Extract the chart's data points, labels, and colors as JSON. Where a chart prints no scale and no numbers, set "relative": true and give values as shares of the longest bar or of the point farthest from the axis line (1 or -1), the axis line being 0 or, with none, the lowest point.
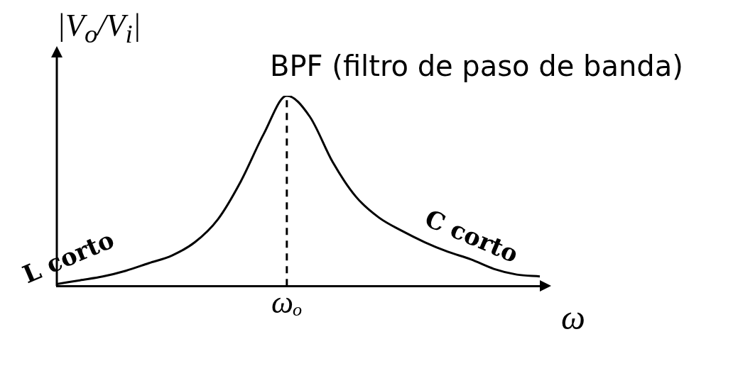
{
  "chart_data": {
    "type": "line",
    "title": "BPF (filtro de paso de banda)",
    "xlabel": "ω",
    "ylabel": "|V$_{o}$/V$_{i}$|",
    "relative": true,
    "grid": false,
    "legend": false,
    "marker": "none",
    "line_style": "solid",
    "categories": [
      null,
      null,
      null,
      null,
      null,
      null,
      null,
      null,
      null,
      null,
      null,
      null,
      null,
      null,
      null,
      null,
      null,
      null,
      null,
      null,
      null,
      null
    ],
    "series": [
      {
        "color": "#000000",
        "values": [
          0.01,
          0.03,
          0.05,
          0.08,
          0.12,
          0.16,
          0.23,
          0.35,
          0.55,
          0.8,
          1,
          0.89,
          0.65,
          0.47,
          0.36,
          0.29,
          0.23,
          0.18,
          0.14,
          0.09,
          0.06,
          0.05
        ]
      }
    ],
    "ref_lines": [
      {
        "axis": "x",
        "label": "ωₒ",
        "line_style": "dashed",
        "color": "#000000"
      }
    ],
    "annotations": [
      "L corto",
      "C corto"
    ]
  }
}
